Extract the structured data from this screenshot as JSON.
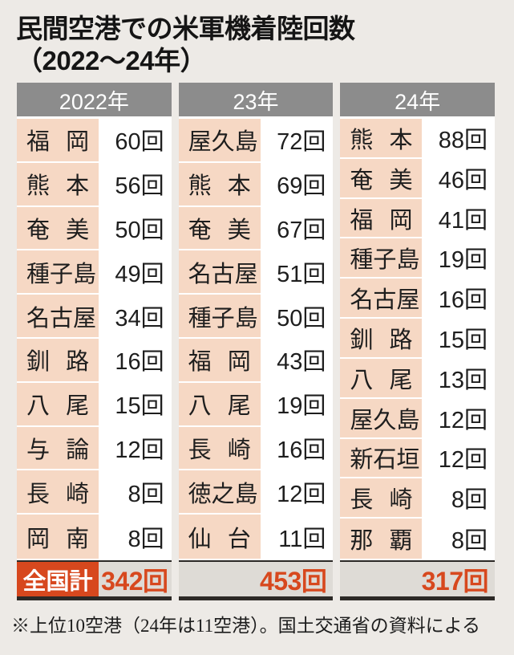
{
  "title": {
    "line1": "民間空港での米軍機着陸回数",
    "line2": "（2022～24年）"
  },
  "total_label": "全国計",
  "footnote": "※上位10空港（24年は11空港）。国土交通省の資料による",
  "columns": [
    {
      "year": "2022年",
      "rows": [
        {
          "name": "福岡",
          "count": "60回"
        },
        {
          "name": "熊本",
          "count": "56回"
        },
        {
          "name": "奄美",
          "count": "50回"
        },
        {
          "name": "種子島",
          "count": "49回"
        },
        {
          "name": "名古屋",
          "count": "34回"
        },
        {
          "name": "釧路",
          "count": "16回"
        },
        {
          "name": "八尾",
          "count": "15回"
        },
        {
          "name": "与論",
          "count": "12回"
        },
        {
          "name": "長崎",
          "count": "8回"
        },
        {
          "name": "岡南",
          "count": "8回"
        }
      ],
      "total": "342回"
    },
    {
      "year": "23年",
      "rows": [
        {
          "name": "屋久島",
          "count": "72回"
        },
        {
          "name": "熊本",
          "count": "69回"
        },
        {
          "name": "奄美",
          "count": "67回"
        },
        {
          "name": "名古屋",
          "count": "51回"
        },
        {
          "name": "種子島",
          "count": "50回"
        },
        {
          "name": "福岡",
          "count": "43回"
        },
        {
          "name": "八尾",
          "count": "19回"
        },
        {
          "name": "長崎",
          "count": "16回"
        },
        {
          "name": "徳之島",
          "count": "12回"
        },
        {
          "name": "仙台",
          "count": "11回"
        }
      ],
      "total": "453回"
    },
    {
      "year": "24年",
      "rows": [
        {
          "name": "熊本",
          "count": "88回"
        },
        {
          "name": "奄美",
          "count": "46回"
        },
        {
          "name": "福岡",
          "count": "41回"
        },
        {
          "name": "種子島",
          "count": "19回"
        },
        {
          "name": "名古屋",
          "count": "16回"
        },
        {
          "name": "釧路",
          "count": "15回"
        },
        {
          "name": "八尾",
          "count": "13回"
        },
        {
          "name": "屋久島",
          "count": "12回"
        },
        {
          "name": "新石垣",
          "count": "12回"
        },
        {
          "name": "長崎",
          "count": "8回"
        },
        {
          "name": "那覇",
          "count": "8回"
        }
      ],
      "total": "317回"
    }
  ],
  "colors": {
    "accent": "#d7481e",
    "name-cell-bg": "#f6d8c4",
    "header-bg": "#8c8c8c",
    "total-bg": "#dedbd6",
    "line": "#3f3f3f",
    "thick": "#2c2926",
    "page-bg": "#edeae6",
    "text": "#1e1e1e"
  },
  "chart_data": {
    "type": "table",
    "title": "民間空港での米軍機着陸回数（2022～24年）",
    "note": "※上位10空港（24年は11空港）。国土交通省の資料による",
    "unit": "回",
    "series": [
      {
        "name": "2022年",
        "total": 342,
        "airports": [
          {
            "airport": "福岡",
            "landings": 60
          },
          {
            "airport": "熊本",
            "landings": 56
          },
          {
            "airport": "奄美",
            "landings": 50
          },
          {
            "airport": "種子島",
            "landings": 49
          },
          {
            "airport": "名古屋",
            "landings": 34
          },
          {
            "airport": "釧路",
            "landings": 16
          },
          {
            "airport": "八尾",
            "landings": 15
          },
          {
            "airport": "与論",
            "landings": 12
          },
          {
            "airport": "長崎",
            "landings": 8
          },
          {
            "airport": "岡南",
            "landings": 8
          }
        ]
      },
      {
        "name": "23年",
        "total": 453,
        "airports": [
          {
            "airport": "屋久島",
            "landings": 72
          },
          {
            "airport": "熊本",
            "landings": 69
          },
          {
            "airport": "奄美",
            "landings": 67
          },
          {
            "airport": "名古屋",
            "landings": 51
          },
          {
            "airport": "種子島",
            "landings": 50
          },
          {
            "airport": "福岡",
            "landings": 43
          },
          {
            "airport": "八尾",
            "landings": 19
          },
          {
            "airport": "長崎",
            "landings": 16
          },
          {
            "airport": "徳之島",
            "landings": 12
          },
          {
            "airport": "仙台",
            "landings": 11
          }
        ]
      },
      {
        "name": "24年",
        "total": 317,
        "airports": [
          {
            "airport": "熊本",
            "landings": 88
          },
          {
            "airport": "奄美",
            "landings": 46
          },
          {
            "airport": "福岡",
            "landings": 41
          },
          {
            "airport": "種子島",
            "landings": 19
          },
          {
            "airport": "名古屋",
            "landings": 16
          },
          {
            "airport": "釧路",
            "landings": 15
          },
          {
            "airport": "八尾",
            "landings": 13
          },
          {
            "airport": "屋久島",
            "landings": 12
          },
          {
            "airport": "新石垣",
            "landings": 12
          },
          {
            "airport": "長崎",
            "landings": 8
          },
          {
            "airport": "那覇",
            "landings": 8
          }
        ]
      }
    ]
  }
}
